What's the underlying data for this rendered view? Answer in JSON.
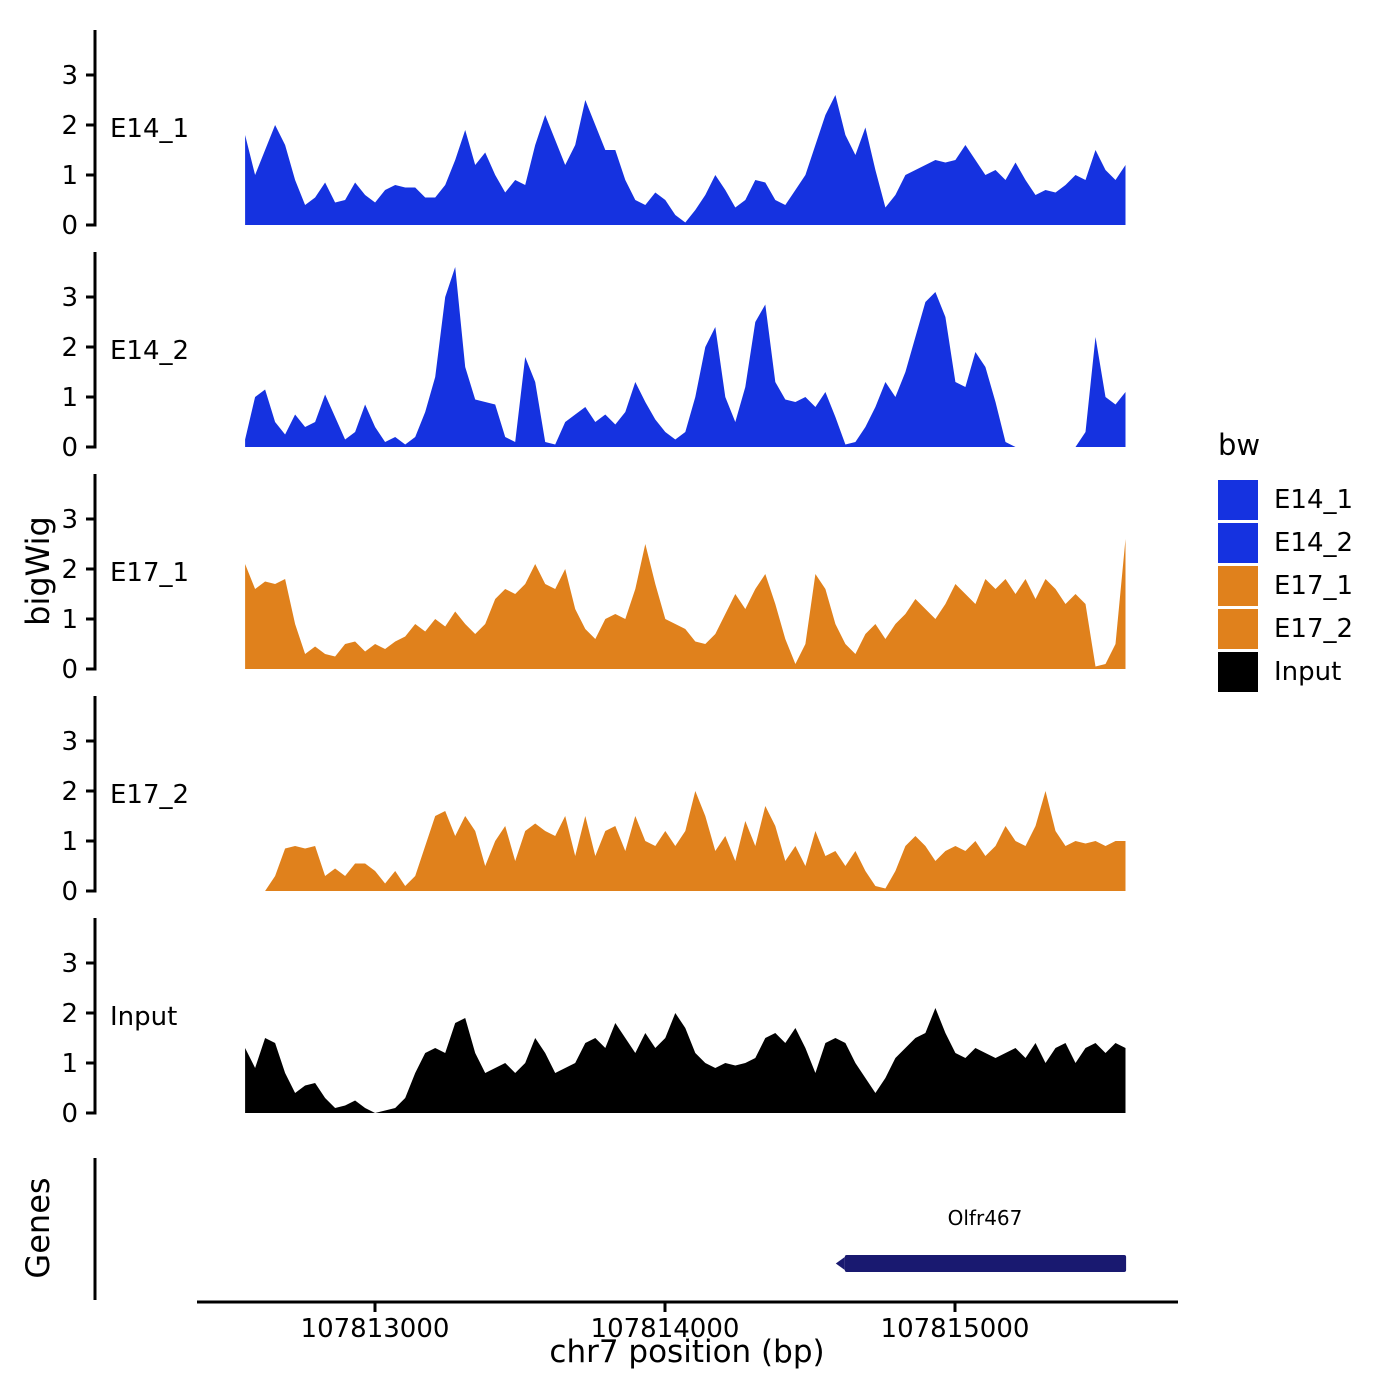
{
  "figure": {
    "y_axis_title": "bigWig",
    "genes_axis_title": "Genes",
    "x_axis_title": "chr7 position (bp)",
    "background": "#ffffff",
    "axis_color": "#000000"
  },
  "y_ticks": [
    "0",
    "1",
    "2",
    "3"
  ],
  "x_ticks": [
    {
      "bp": 107813000,
      "label": "107813000"
    },
    {
      "bp": 107814000,
      "label": "107814000"
    },
    {
      "bp": 107815000,
      "label": "107815000"
    }
  ],
  "colors": {
    "blue": "#1532E0",
    "orange": "#E0811C",
    "black": "#000000",
    "gene": "#191970"
  },
  "legend": {
    "title": "bw",
    "items": [
      {
        "label": "E14_1",
        "color": "#1532E0"
      },
      {
        "label": "E14_2",
        "color": "#1532E0"
      },
      {
        "label": "E17_1",
        "color": "#E0811C"
      },
      {
        "label": "E17_2",
        "color": "#E0811C"
      },
      {
        "label": "Input",
        "color": "#000000"
      }
    ]
  },
  "gene": {
    "name": "Olfr467",
    "start_bp": 107814620,
    "end_bp": 107815590,
    "color": "#191970",
    "strand": "-"
  },
  "chart_data": {
    "type": "area",
    "title": "",
    "xlabel": "chr7 position (bp)",
    "ylabel": "bigWig",
    "ylim": [
      0,
      3.6
    ],
    "y_tick_values": [
      0,
      1,
      2,
      3
    ],
    "x_start": 107812552,
    "x_step": 34.5,
    "n_points": 89,
    "x_tick_values": [
      107813000,
      107814000,
      107815000
    ],
    "legend_position": "right",
    "grid": false,
    "series": [
      {
        "name": "E14_1",
        "color": "#1532E0",
        "values": [
          1.8,
          1.0,
          1.5,
          2.0,
          1.6,
          0.9,
          0.4,
          0.55,
          0.85,
          0.45,
          0.5,
          0.85,
          0.6,
          0.45,
          0.7,
          0.8,
          0.75,
          0.75,
          0.55,
          0.55,
          0.8,
          1.3,
          1.9,
          1.2,
          1.45,
          1.0,
          0.65,
          0.9,
          0.8,
          1.6,
          2.2,
          1.7,
          1.2,
          1.6,
          2.5,
          2.0,
          1.5,
          1.5,
          0.9,
          0.5,
          0.4,
          0.65,
          0.5,
          0.2,
          0.05,
          0.3,
          0.6,
          1.0,
          0.7,
          0.35,
          0.5,
          0.9,
          0.85,
          0.5,
          0.4,
          0.7,
          1.0,
          1.6,
          2.2,
          2.6,
          1.8,
          1.4,
          1.95,
          1.1,
          0.35,
          0.6,
          1.0,
          1.1,
          1.2,
          1.3,
          1.25,
          1.3,
          1.6,
          1.3,
          1.0,
          1.1,
          0.9,
          1.25,
          0.9,
          0.6,
          0.7,
          0.65,
          0.8,
          1.0,
          0.9,
          1.5,
          1.1,
          0.9,
          1.2
        ]
      },
      {
        "name": "E14_2",
        "color": "#1532E0",
        "values": [
          0.15,
          1.0,
          1.15,
          0.5,
          0.25,
          0.65,
          0.4,
          0.5,
          1.05,
          0.6,
          0.15,
          0.3,
          0.85,
          0.4,
          0.1,
          0.2,
          0.05,
          0.2,
          0.7,
          1.4,
          3.0,
          3.6,
          1.6,
          0.95,
          0.9,
          0.85,
          0.2,
          0.1,
          1.8,
          1.3,
          0.1,
          0.05,
          0.5,
          0.65,
          0.8,
          0.5,
          0.65,
          0.45,
          0.7,
          1.3,
          0.9,
          0.55,
          0.3,
          0.15,
          0.3,
          1.0,
          2.0,
          2.4,
          1.0,
          0.5,
          1.2,
          2.5,
          2.85,
          1.3,
          0.95,
          0.9,
          1.0,
          0.8,
          1.1,
          0.6,
          0.05,
          0.1,
          0.4,
          0.8,
          1.3,
          1.0,
          1.5,
          2.2,
          2.9,
          3.1,
          2.6,
          1.3,
          1.2,
          1.9,
          1.6,
          0.9,
          0.1,
          0,
          0,
          0,
          0,
          0,
          0,
          0,
          0.3,
          2.2,
          1.0,
          0.85,
          1.1
        ]
      },
      {
        "name": "E17_1",
        "color": "#E0811C",
        "values": [
          2.1,
          1.6,
          1.75,
          1.7,
          1.8,
          0.9,
          0.3,
          0.45,
          0.3,
          0.25,
          0.5,
          0.55,
          0.35,
          0.5,
          0.4,
          0.55,
          0.65,
          0.9,
          0.75,
          1.0,
          0.85,
          1.15,
          0.9,
          0.7,
          0.9,
          1.4,
          1.6,
          1.5,
          1.7,
          2.1,
          1.7,
          1.6,
          2.0,
          1.2,
          0.8,
          0.6,
          1.0,
          1.1,
          1.0,
          1.6,
          2.5,
          1.7,
          1.0,
          0.9,
          0.8,
          0.55,
          0.5,
          0.7,
          1.1,
          1.5,
          1.2,
          1.6,
          1.9,
          1.3,
          0.6,
          0.1,
          0.5,
          1.9,
          1.6,
          0.9,
          0.5,
          0.3,
          0.7,
          0.9,
          0.6,
          0.9,
          1.1,
          1.4,
          1.2,
          1.0,
          1.3,
          1.7,
          1.5,
          1.3,
          1.8,
          1.6,
          1.8,
          1.5,
          1.8,
          1.4,
          1.8,
          1.6,
          1.3,
          1.5,
          1.3,
          0.05,
          0.1,
          0.5,
          2.6
        ]
      },
      {
        "name": "E17_2",
        "color": "#E0811C",
        "values": [
          0,
          0,
          0,
          0.3,
          0.85,
          0.9,
          0.85,
          0.9,
          0.3,
          0.45,
          0.3,
          0.55,
          0.55,
          0.4,
          0.15,
          0.4,
          0.1,
          0.3,
          0.9,
          1.5,
          1.6,
          1.1,
          1.5,
          1.2,
          0.5,
          1.0,
          1.3,
          0.6,
          1.2,
          1.35,
          1.2,
          1.1,
          1.5,
          0.7,
          1.5,
          0.7,
          1.2,
          1.3,
          0.8,
          1.5,
          1.0,
          0.9,
          1.2,
          0.9,
          1.2,
          2.0,
          1.5,
          0.8,
          1.1,
          0.6,
          1.4,
          0.9,
          1.7,
          1.3,
          0.6,
          0.9,
          0.5,
          1.2,
          0.7,
          0.8,
          0.5,
          0.8,
          0.4,
          0.1,
          0.05,
          0.4,
          0.9,
          1.1,
          0.9,
          0.6,
          0.8,
          0.9,
          0.8,
          1.0,
          0.7,
          0.9,
          1.3,
          1.0,
          0.9,
          1.3,
          2.0,
          1.2,
          0.9,
          1.0,
          0.95,
          1.0,
          0.9,
          1.0,
          1.0
        ]
      },
      {
        "name": "Input",
        "color": "#000000",
        "values": [
          1.3,
          0.9,
          1.5,
          1.4,
          0.8,
          0.4,
          0.55,
          0.6,
          0.3,
          0.1,
          0.15,
          0.25,
          0.1,
          0,
          0.05,
          0.1,
          0.3,
          0.8,
          1.2,
          1.3,
          1.2,
          1.8,
          1.9,
          1.2,
          0.8,
          0.9,
          1.0,
          0.8,
          1.0,
          1.5,
          1.2,
          0.8,
          0.9,
          1.0,
          1.4,
          1.5,
          1.3,
          1.8,
          1.5,
          1.2,
          1.6,
          1.3,
          1.5,
          2.0,
          1.7,
          1.2,
          1.0,
          0.9,
          1.0,
          0.95,
          1.0,
          1.1,
          1.5,
          1.6,
          1.4,
          1.7,
          1.3,
          0.8,
          1.4,
          1.5,
          1.4,
          1.0,
          0.7,
          0.4,
          0.7,
          1.1,
          1.3,
          1.5,
          1.6,
          2.1,
          1.6,
          1.2,
          1.1,
          1.3,
          1.2,
          1.1,
          1.2,
          1.3,
          1.1,
          1.4,
          1.0,
          1.3,
          1.4,
          1.0,
          1.3,
          1.4,
          1.2,
          1.4,
          1.3
        ]
      }
    ]
  }
}
